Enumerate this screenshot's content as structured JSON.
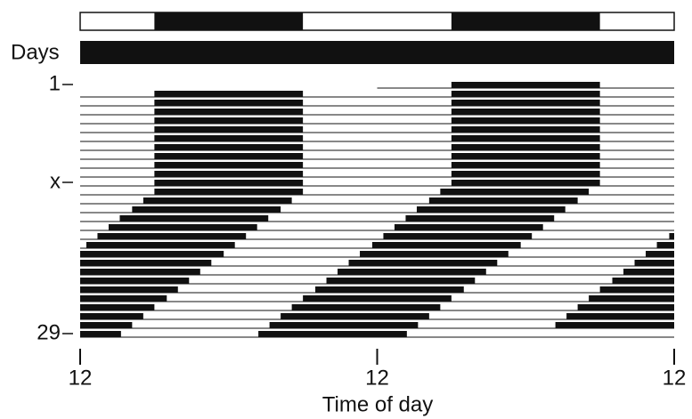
{
  "chart_data": {
    "type": "actogram",
    "ylabel": "Days",
    "xlabel": "Time of day",
    "xlim": [
      0,
      48
    ],
    "xticks": [
      {
        "value": 0,
        "label": "12"
      },
      {
        "value": 24,
        "label": "12"
      },
      {
        "value": 48,
        "label": "12"
      }
    ],
    "ylim": [
      1,
      29
    ],
    "yticks": [
      1,
      {
        "value": 12,
        "label": "x"
      },
      29
    ],
    "lighting_dark": [
      [
        6,
        18
      ],
      [
        30,
        42
      ]
    ],
    "constant_dark": [
      0,
      48
    ],
    "color": "#111111",
    "days": [
      1,
      2,
      3,
      4,
      5,
      6,
      7,
      8,
      9,
      10,
      11,
      12,
      13,
      14,
      15,
      16,
      17,
      18,
      19,
      20,
      21,
      22,
      23,
      24,
      25,
      26,
      27,
      28,
      29
    ],
    "onset": [
      6,
      6,
      6,
      6,
      6,
      6,
      6,
      6,
      6,
      6,
      6,
      6,
      5.1,
      4.2,
      3.2,
      2.3,
      1.4,
      0.5,
      -0.4,
      -1.4,
      -2.3,
      -3.2,
      -4.1,
      -5,
      -6,
      -6.9,
      -7.8,
      -8.7,
      -9.6
    ],
    "offset": [
      18,
      18,
      18,
      18,
      18,
      18,
      18,
      18,
      18,
      18,
      18,
      18,
      17.1,
      16.2,
      15.2,
      14.3,
      13.4,
      12.5,
      11.6,
      10.6,
      9.7,
      8.8,
      7.9,
      7,
      6,
      5.1,
      4.2,
      3.3,
      2.4
    ]
  }
}
